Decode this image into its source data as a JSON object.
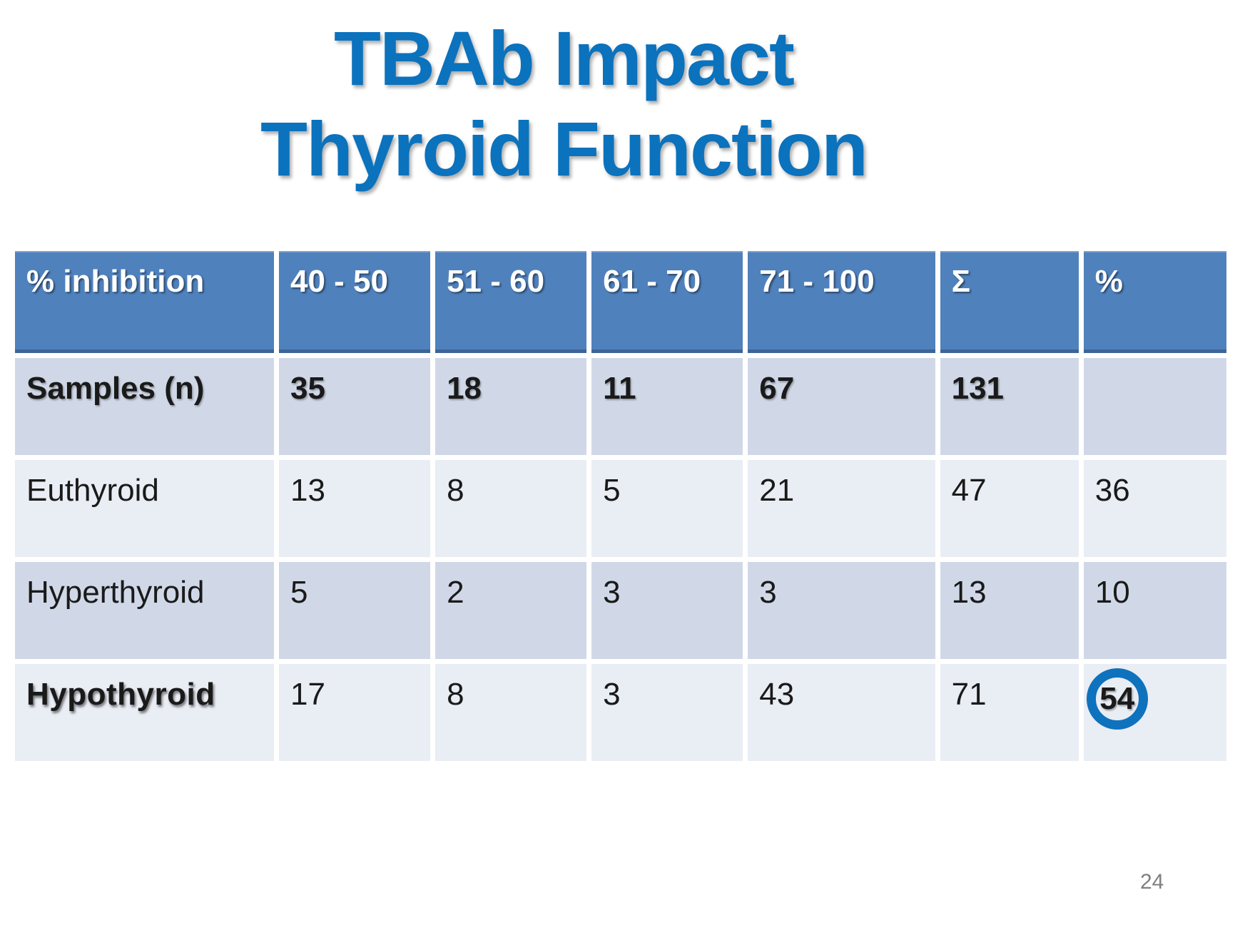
{
  "title": {
    "text": "TBAb Impact\nThyroid Function"
  },
  "table": {
    "columns": [
      "% inhibition",
      "40 - 50",
      "51 - 60",
      "61 - 70",
      "71 - 100",
      "Σ",
      "%"
    ],
    "rows": [
      {
        "label": "Samples (n)",
        "values": [
          "35",
          "18",
          "11",
          "67",
          "131",
          ""
        ],
        "row_bold": true
      },
      {
        "label": "Euthyroid",
        "values": [
          "13",
          "8",
          "5",
          "21",
          "47",
          "36"
        ]
      },
      {
        "label": "Hyperthyroid",
        "values": [
          "5",
          "2",
          "3",
          "3",
          "13",
          "10"
        ]
      },
      {
        "label": "Hypothyroid",
        "values": [
          "17",
          "8",
          "3",
          "43",
          "71",
          "54"
        ],
        "label_bold": true,
        "circled_value_index": 5
      }
    ]
  },
  "page_number": "24",
  "colors": {
    "title_blue": "#0B72BD",
    "header_bg": "#4F81BD",
    "header_edge": "#3E6497",
    "band_dark": "#D0D8E8",
    "band_light": "#E9EDF4",
    "ring_blue": "#0E72BD",
    "page_gray": "#7F7F7F"
  }
}
